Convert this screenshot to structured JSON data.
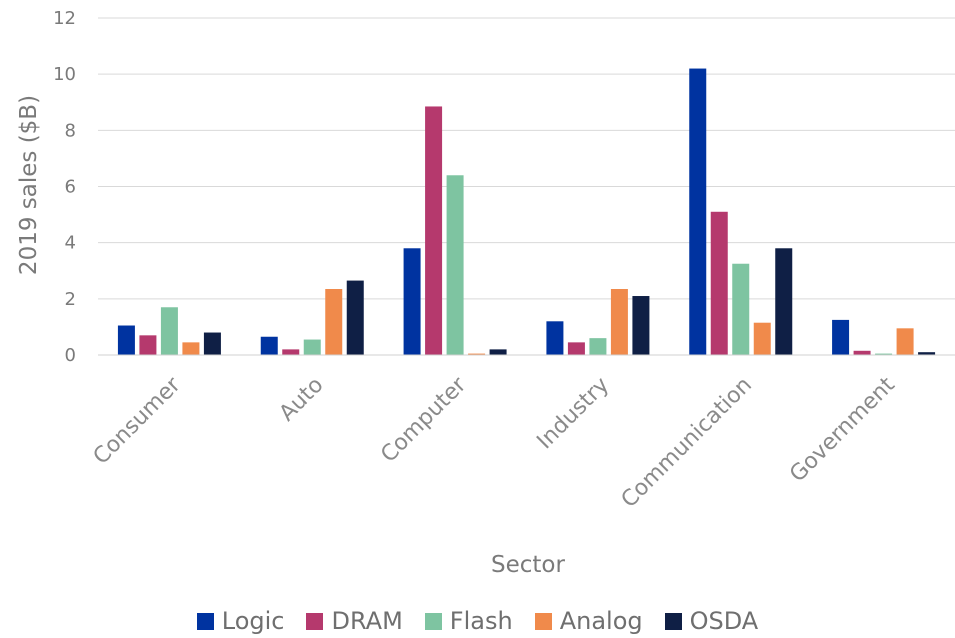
{
  "chart_data": {
    "type": "bar",
    "categories": [
      "Consumer",
      "Auto",
      "Computer",
      "Industry",
      "Communication",
      "Government"
    ],
    "series": [
      {
        "name": "Logic",
        "color": "#0033a0",
        "values": [
          1.05,
          0.65,
          3.8,
          1.2,
          10.2,
          1.25
        ]
      },
      {
        "name": "DRAM",
        "color": "#b5396d",
        "values": [
          0.7,
          0.2,
          8.85,
          0.45,
          5.1,
          0.15
        ]
      },
      {
        "name": "Flash",
        "color": "#7ec4a1",
        "values": [
          1.7,
          0.55,
          6.4,
          0.6,
          3.25,
          0.05
        ]
      },
      {
        "name": "Analog",
        "color": "#f08a4b",
        "values": [
          0.45,
          2.35,
          0.05,
          2.35,
          1.15,
          0.95
        ]
      },
      {
        "name": "OSDA",
        "color": "#0f1f45",
        "values": [
          0.8,
          2.65,
          0.2,
          2.1,
          3.8,
          0.1
        ]
      }
    ],
    "xlabel": "Sector",
    "ylabel": "2019 sales ($B)",
    "ylim": [
      0,
      12
    ],
    "yticks": [
      0,
      2,
      4,
      6,
      8,
      10,
      12
    ],
    "grid": true,
    "legend_position": "bottom"
  }
}
